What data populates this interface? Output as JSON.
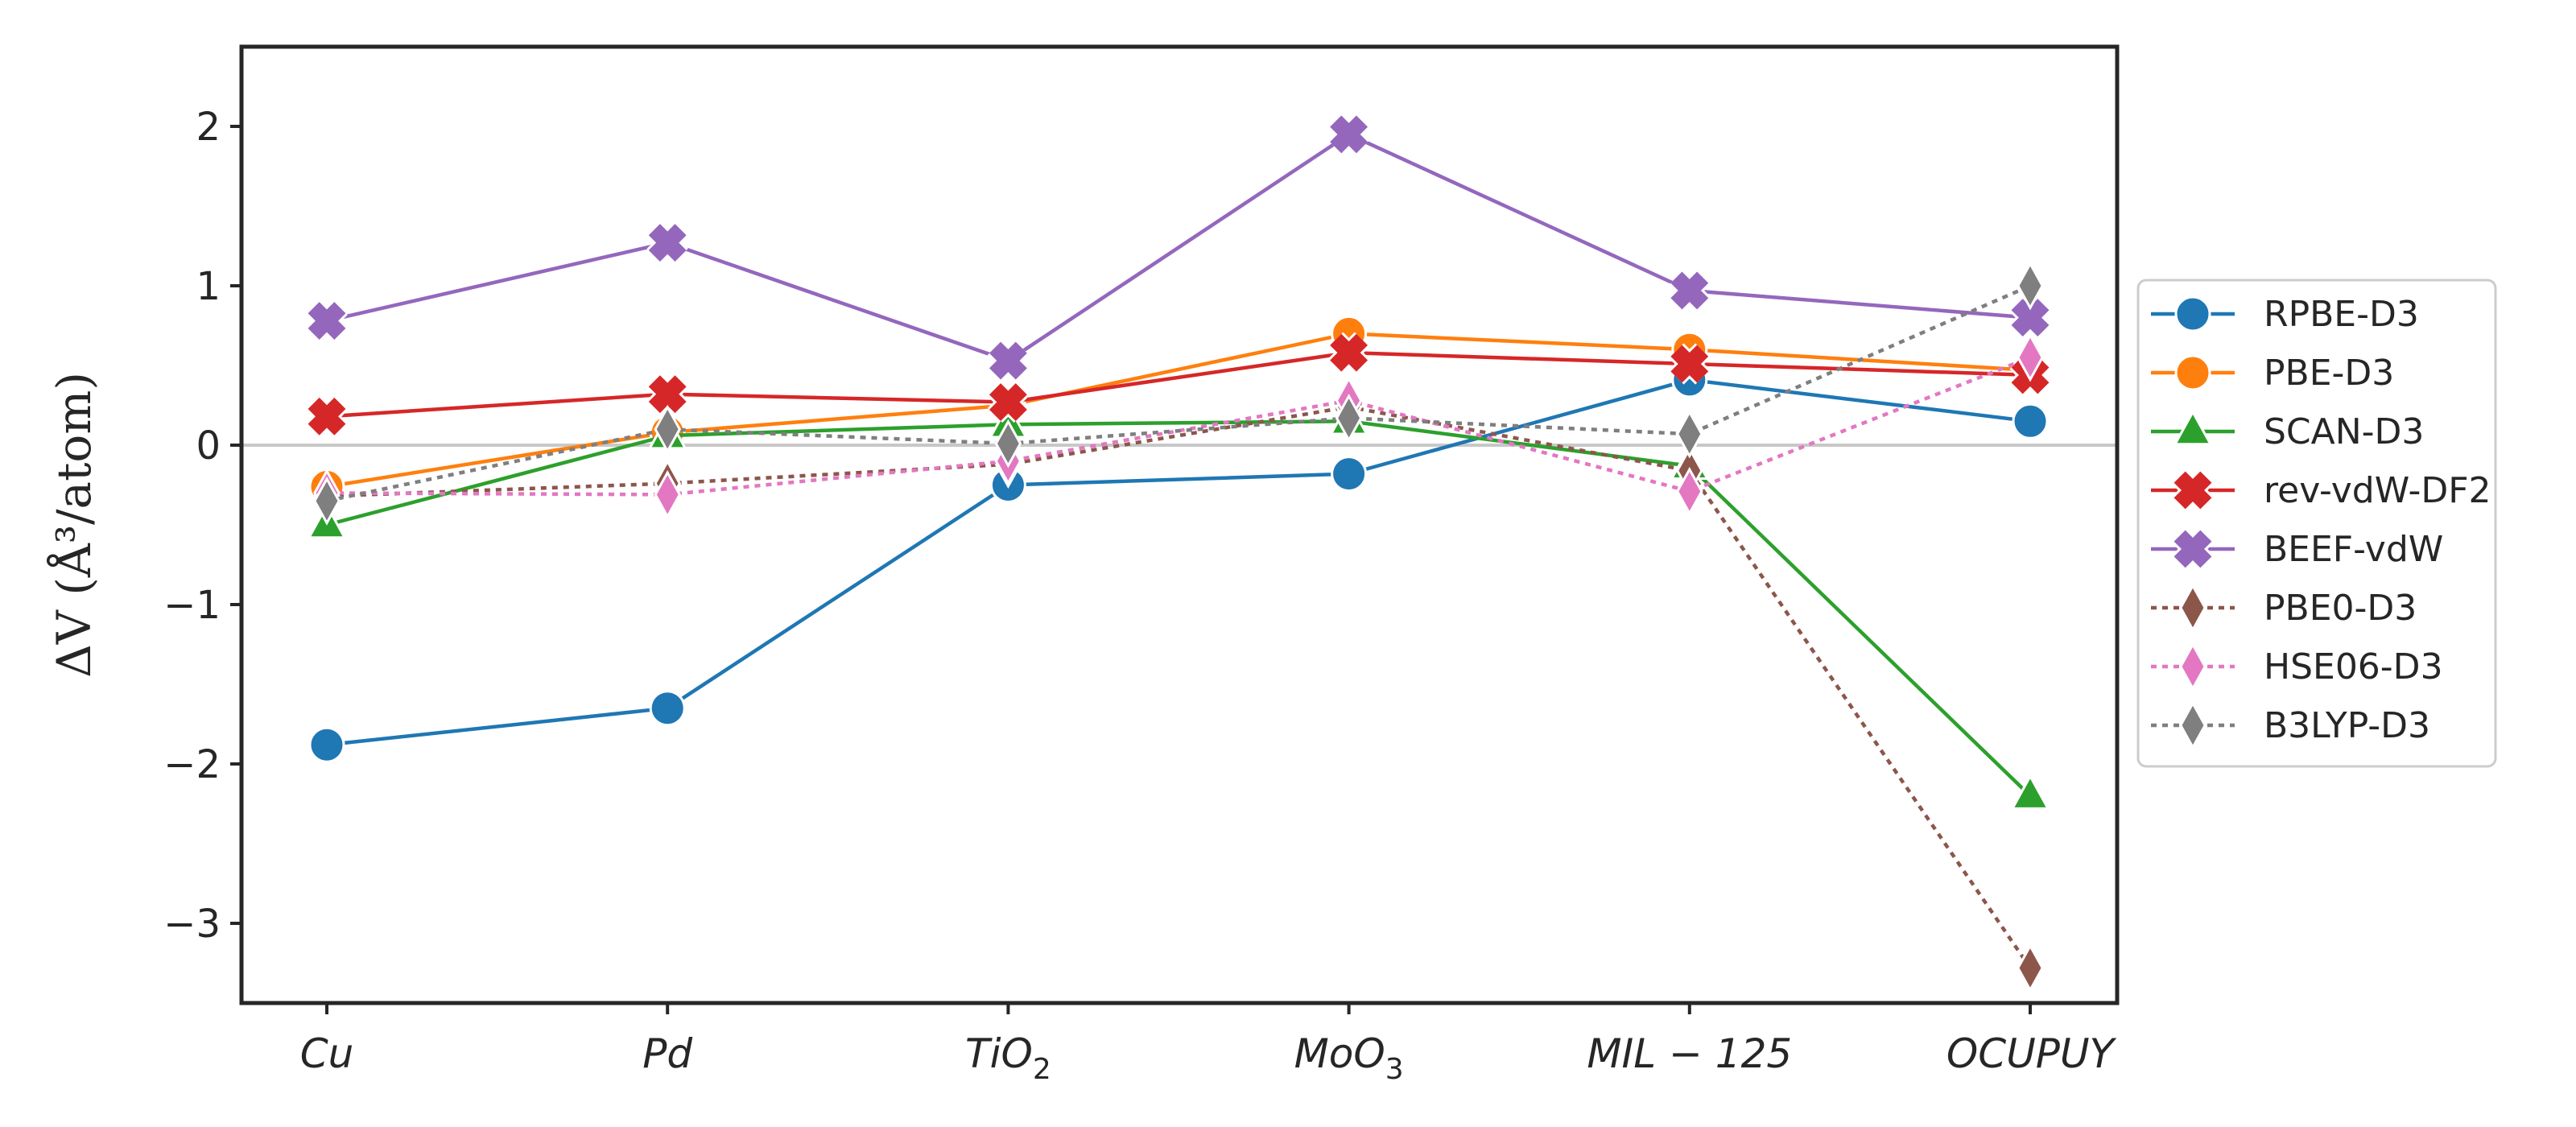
{
  "chart_data": {
    "type": "line",
    "title": "",
    "xlabel": "",
    "ylabel": "ΔV (Å³/atom)",
    "categories": [
      "Cu",
      "Pd",
      "TiO2",
      "MoO3",
      "MIL-125",
      "OCUPUY"
    ],
    "category_labels": [
      {
        "base": "Cu",
        "sub": ""
      },
      {
        "base": "Pd",
        "sub": ""
      },
      {
        "base": "TiO",
        "sub": "2"
      },
      {
        "base": "MoO",
        "sub": "3"
      },
      {
        "base": "MIL − 125",
        "sub": ""
      },
      {
        "base": "OCUPUY",
        "sub": ""
      }
    ],
    "ylim": [
      -3.5,
      2.5
    ],
    "yticks": [
      -3,
      -2,
      -1,
      0,
      1,
      2
    ],
    "ytick_labels": [
      "−3",
      "−2",
      "−1",
      "0",
      "1",
      "2"
    ],
    "zero_line": true,
    "legend_position": "center-right-outside",
    "series": [
      {
        "name": "RPBE-D3",
        "color": "#1f77b4",
        "marker": "circle",
        "dashed": false,
        "values": [
          -1.88,
          -1.65,
          -0.25,
          -0.18,
          0.41,
          0.15
        ]
      },
      {
        "name": "PBE-D3",
        "color": "#ff7f0e",
        "marker": "circle",
        "dashed": false,
        "values": [
          -0.26,
          0.08,
          0.25,
          0.7,
          0.6,
          0.47
        ]
      },
      {
        "name": "SCAN-D3",
        "color": "#2ca02c",
        "marker": "triangle",
        "dashed": false,
        "values": [
          -0.5,
          0.06,
          0.13,
          0.15,
          -0.13,
          -2.2
        ]
      },
      {
        "name": "rev-vdW-DF2",
        "color": "#d62728",
        "marker": "x",
        "dashed": false,
        "values": [
          0.18,
          0.32,
          0.27,
          0.58,
          0.51,
          0.44
        ]
      },
      {
        "name": "BEEF-vdW",
        "color": "#9467bd",
        "marker": "x",
        "dashed": false,
        "values": [
          0.78,
          1.27,
          0.53,
          1.95,
          0.97,
          0.8
        ]
      },
      {
        "name": "PBE0-D3",
        "color": "#8c564b",
        "marker": "diamond",
        "dashed": true,
        "values": [
          -0.32,
          -0.24,
          -0.12,
          0.24,
          -0.16,
          -3.28
        ]
      },
      {
        "name": "HSE06-D3",
        "color": "#e377c2",
        "marker": "diamond",
        "dashed": true,
        "values": [
          -0.3,
          -0.31,
          -0.1,
          0.28,
          -0.29,
          0.55
        ]
      },
      {
        "name": "B3LYP-D3",
        "color": "#7f7f7f",
        "marker": "diamond",
        "dashed": true,
        "values": [
          -0.35,
          0.1,
          0.01,
          0.17,
          0.07,
          1.0
        ]
      }
    ]
  }
}
